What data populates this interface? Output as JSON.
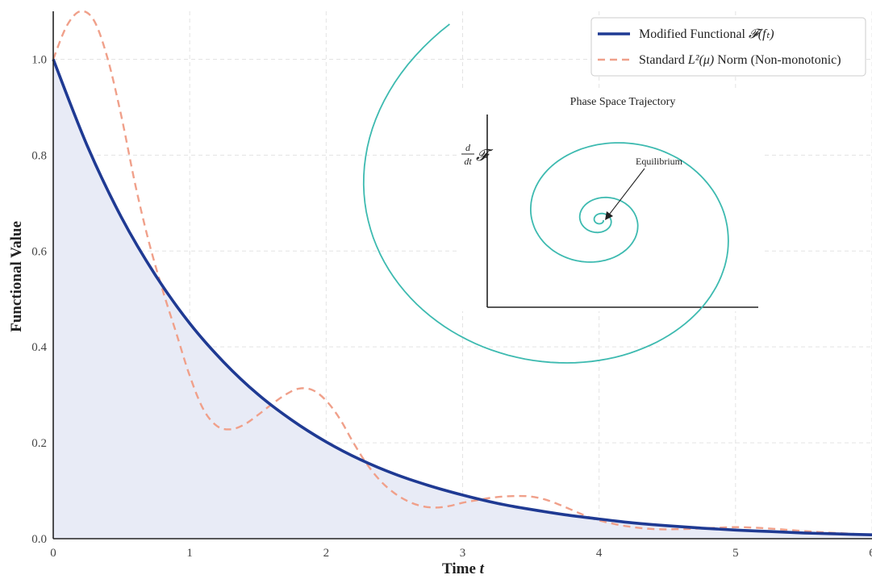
{
  "chart_data": {
    "type": "line",
    "xlabel": "Time",
    "xlabel_var": "t",
    "ylabel": "Functional Value",
    "xlim": [
      0,
      6
    ],
    "ylim": [
      0,
      1.1
    ],
    "x_ticks": [
      "0",
      "1",
      "2",
      "3",
      "4",
      "5",
      "6"
    ],
    "y_ticks": [
      "0.0",
      "0.2",
      "0.4",
      "0.6",
      "0.8",
      "1.0"
    ],
    "grid": true,
    "legend_position": "top-right",
    "series": [
      {
        "name": "Modified Functional 𝓕(fₜ)",
        "style": "solid",
        "color": "#1f3a93",
        "fill_under": "#e8ebf6",
        "x": [
          0,
          0.25,
          0.5,
          0.75,
          1,
          1.25,
          1.5,
          1.75,
          2,
          2.25,
          2.5,
          2.75,
          3,
          3.25,
          3.5,
          3.75,
          4,
          4.25,
          4.5,
          4.75,
          5,
          5.25,
          5.5,
          5.75,
          6
        ],
        "y": [
          1.0,
          0.819,
          0.67,
          0.549,
          0.449,
          0.368,
          0.301,
          0.247,
          0.202,
          0.165,
          0.135,
          0.111,
          0.091,
          0.074,
          0.061,
          0.05,
          0.041,
          0.033,
          0.027,
          0.022,
          0.018,
          0.015,
          0.012,
          0.01,
          0.008
        ]
      },
      {
        "name": "Standard L²(μ) Norm (Non-monotonic)",
        "style": "dashed",
        "color": "#f0a08a",
        "x": [
          0,
          0.1,
          0.2,
          0.3,
          0.4,
          0.5,
          0.6,
          0.7,
          0.8,
          0.9,
          1.0,
          1.1,
          1.2,
          1.3,
          1.4,
          1.5,
          1.6,
          1.7,
          1.8,
          1.9,
          2.0,
          2.1,
          2.2,
          2.3,
          2.4,
          2.5,
          2.6,
          2.7,
          2.8,
          2.9,
          3.0,
          3.1,
          3.2,
          3.3,
          3.4,
          3.5,
          3.6,
          3.7,
          3.8,
          3.9,
          4.0,
          4.2,
          4.4,
          4.6,
          4.8,
          5.0,
          5.2,
          5.4,
          5.6,
          5.8,
          6.0
        ],
        "y": [
          1.0,
          1.07,
          1.1,
          1.08,
          1.0,
          0.88,
          0.74,
          0.62,
          0.52,
          0.43,
          0.34,
          0.27,
          0.235,
          0.228,
          0.238,
          0.258,
          0.28,
          0.3,
          0.313,
          0.31,
          0.288,
          0.25,
          0.2,
          0.155,
          0.12,
          0.095,
          0.078,
          0.068,
          0.065,
          0.068,
          0.075,
          0.08,
          0.085,
          0.088,
          0.089,
          0.088,
          0.082,
          0.072,
          0.06,
          0.048,
          0.038,
          0.026,
          0.02,
          0.02,
          0.022,
          0.024,
          0.022,
          0.018,
          0.014,
          0.011,
          0.008
        ]
      }
    ],
    "inset": {
      "title": "Phase Space Trajectory",
      "ylabel_num": "d",
      "ylabel_den": "dt",
      "ylabel_symbol": "𝓕",
      "annotation": "Equilibrium",
      "color": "#3dbab0"
    }
  },
  "legend": {
    "item1_prefix": "Modified Functional ",
    "item1_math": "𝓕(fₜ)",
    "item2_prefix": "Standard ",
    "item2_math": "L²(μ)",
    "item2_suffix": " Norm (Non-monotonic)"
  }
}
